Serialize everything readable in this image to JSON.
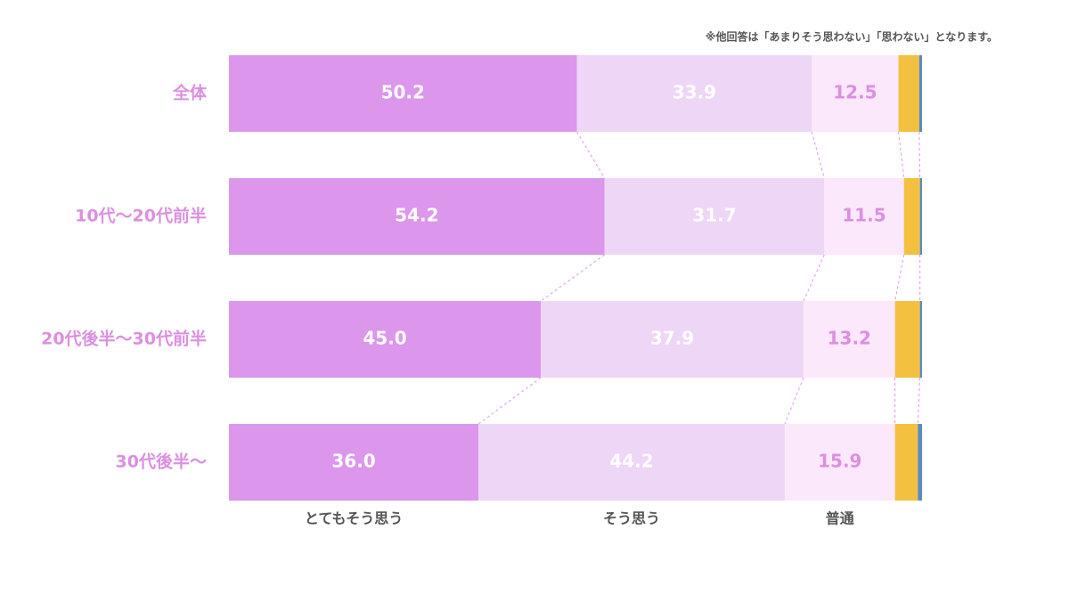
{
  "chart_data": {
    "type": "stacked-barh",
    "note": "※他回答は「あまりそう思わない」「思わない」となります。",
    "categories": [
      "全体",
      "10代～20代前半",
      "20代後半～30代前半",
      "30代後半～"
    ],
    "xlim": [
      0,
      100
    ],
    "series": [
      {
        "name": "とてもそう思う",
        "color": "#dc96ec",
        "label_color": "#ffffff",
        "values": [
          50.2,
          54.2,
          45.0,
          36.0
        ],
        "value_labels": [
          "50.2",
          "54.2",
          "45.0",
          "36.0"
        ]
      },
      {
        "name": "そう思う",
        "color": "#eed6f6",
        "label_color": "#ffffff",
        "values": [
          33.9,
          31.7,
          37.9,
          44.2
        ],
        "value_labels": [
          "33.9",
          "31.7",
          "37.9",
          "44.2"
        ]
      },
      {
        "name": "普通",
        "color": "#fbe8fb",
        "label_color": "#dc8fe0",
        "values": [
          12.5,
          11.5,
          13.2,
          15.9
        ],
        "value_labels": [
          "12.5",
          "11.5",
          "13.2",
          "15.9"
        ]
      },
      {
        "color": "#f3c040",
        "values": [
          3.0,
          2.3,
          3.6,
          3.3
        ]
      },
      {
        "color": "#5b8ac0",
        "values": [
          0.4,
          0.3,
          0.3,
          0.6
        ]
      }
    ]
  }
}
